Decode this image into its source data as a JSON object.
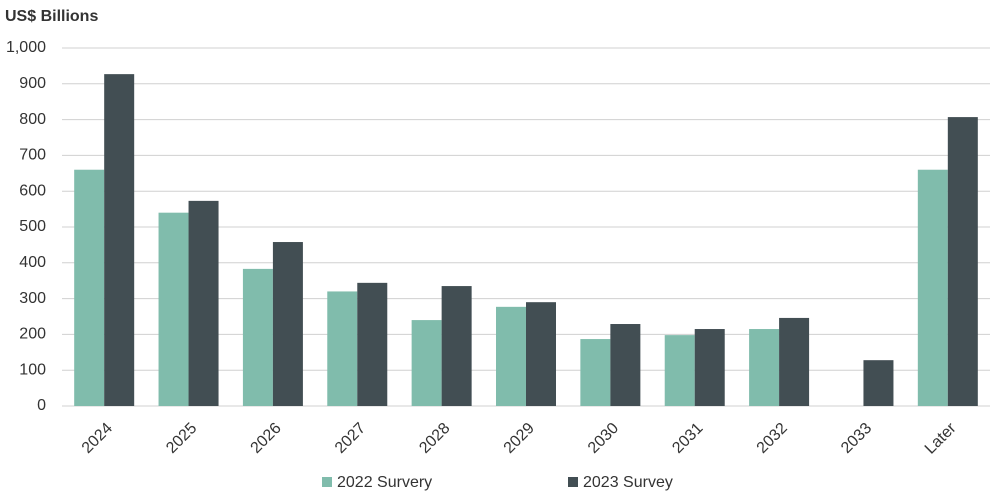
{
  "chart_data": {
    "type": "bar",
    "title": "US$ Billions",
    "categories": [
      "2024",
      "2025",
      "2026",
      "2027",
      "2028",
      "2029",
      "2030",
      "2031",
      "2032",
      "2033",
      "Later"
    ],
    "series": [
      {
        "name": "2022 Survery",
        "color": "#80bcac",
        "values": [
          660,
          540,
          383,
          320,
          240,
          277,
          187,
          198,
          215,
          null,
          660
        ]
      },
      {
        "name": "2023 Survey",
        "color": "#424e53",
        "values": [
          927,
          573,
          458,
          344,
          335,
          290,
          229,
          215,
          246,
          128,
          807
        ]
      }
    ],
    "ylim": [
      0,
      1000
    ],
    "yticks": [
      0,
      100,
      200,
      300,
      400,
      500,
      600,
      700,
      800,
      900,
      {
        "value": 1000,
        "label": "1,000"
      }
    ],
    "grid": true
  }
}
